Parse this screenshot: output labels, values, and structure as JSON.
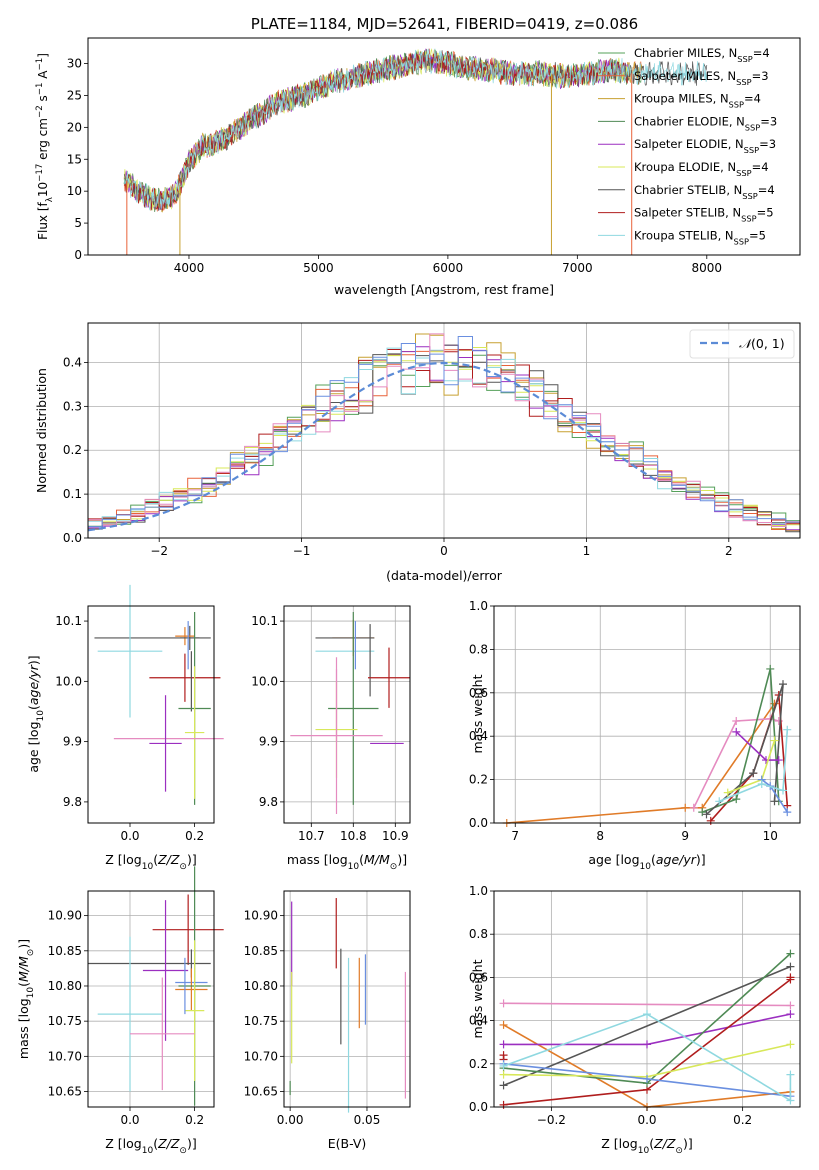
{
  "figure": {
    "title": "PLATE=1184, MJD=52641, FIBERID=0419, z=0.086"
  },
  "colors": {
    "Chabrier MILES": "#55a05a",
    "Salpeter MILES": "#e8623a",
    "Kroupa MILES": "#c7a030",
    "Chabrier ELODIE": "#4f8a55",
    "Salpeter ELODIE": "#9b2fc0",
    "Kroupa ELODIE": "#d8e85a",
    "Chabrier STELIB": "#555555",
    "Salpeter STELIB": "#b01d1d",
    "Kroupa STELIB": "#8fd8e0",
    "pink": "#e58bc0",
    "blue": "#6a8fe0",
    "orange": "#e07b28",
    "gauss": "#5b8bd6"
  },
  "chart_data": [
    {
      "id": "spectrum",
      "type": "line",
      "title": "PLATE=1184, MJD=52641, FIBERID=0419, z=0.086",
      "xlabel": "wavelength [Angstrom, rest frame]",
      "ylabel": "Flux [f_λ 10^-17 erg cm^-2 s^-1 A^-1]",
      "xlim": [
        3220,
        8720
      ],
      "ylim": [
        0,
        34
      ],
      "xticks": [
        4000,
        5000,
        6000,
        7000,
        8000
      ],
      "yticks": [
        0,
        5,
        10,
        15,
        20,
        25,
        30
      ],
      "legend_position": "top-right",
      "continuum": {
        "x": [
          3500,
          3600,
          3700,
          3800,
          3900,
          3950,
          4000,
          4100,
          4200,
          4300,
          4400,
          4500,
          4700,
          4900,
          5100,
          5300,
          5500,
          5700,
          5900,
          6100,
          6300,
          6500,
          6700,
          6900,
          7100,
          7300,
          7400
        ],
        "y": [
          12,
          10,
          9,
          8.5,
          9.5,
          12,
          14.5,
          17,
          17.5,
          18.5,
          20,
          21.5,
          24,
          25,
          27,
          28,
          29,
          30,
          30.5,
          29.5,
          29,
          28.5,
          28.5,
          28,
          28.5,
          29,
          28.5
        ]
      },
      "series": [
        {
          "name": "Chabrier MILES, N_SSP=4",
          "label_main": "Chabrier MILES, N",
          "label_sub": "SSP",
          "label_end": "=4",
          "color_key": "Chabrier MILES",
          "x_end": 7500
        },
        {
          "name": "Salpeter MILES, N_SSP=3",
          "label_main": "Salpeter MILES, N",
          "label_sub": "SSP",
          "label_end": "=3",
          "color_key": "Salpeter MILES",
          "x_end": 7500
        },
        {
          "name": "Kroupa MILES, N_SSP=4",
          "label_main": "Kroupa MILES, N",
          "label_sub": "SSP",
          "label_end": "=4",
          "color_key": "Kroupa MILES",
          "x_end": 7500
        },
        {
          "name": "Chabrier ELODIE, N_SSP=3",
          "label_main": "Chabrier ELODIE, N",
          "label_sub": "SSP",
          "label_end": "=3",
          "color_key": "Chabrier ELODIE",
          "x_end": 7400
        },
        {
          "name": "Salpeter ELODIE, N_SSP=3",
          "label_main": "Salpeter ELODIE, N",
          "label_sub": "SSP",
          "label_end": "=3",
          "color_key": "Salpeter ELODIE",
          "x_end": 7400
        },
        {
          "name": "Kroupa ELODIE, N_SSP=4",
          "label_main": "Kroupa ELODIE, N",
          "label_sub": "SSP",
          "label_end": "=4",
          "color_key": "Kroupa ELODIE",
          "x_end": 7400
        },
        {
          "name": "Chabrier STELIB, N_SSP=4",
          "label_main": "Chabrier STELIB, N",
          "label_sub": "SSP",
          "label_end": "=4",
          "color_key": "Chabrier STELIB",
          "x_end": 8000
        },
        {
          "name": "Salpeter STELIB, N_SSP=5",
          "label_main": "Salpeter STELIB, N",
          "label_sub": "SSP",
          "label_end": "=5",
          "color_key": "Salpeter STELIB",
          "x_end": 7400
        },
        {
          "name": "Kroupa STELIB, N_SSP=5",
          "label_main": "Kroupa STELIB, N",
          "label_sub": "SSP",
          "label_end": "=5",
          "color_key": "Kroupa STELIB",
          "x_end": 8000
        }
      ],
      "dips": [
        {
          "x": 3520,
          "color_key": "Salpeter MILES"
        },
        {
          "x": 3930,
          "color_key": "Kroupa MILES"
        },
        {
          "x": 6800,
          "color_key": "Kroupa MILES"
        },
        {
          "x": 7420,
          "color_key": "Salpeter MILES"
        }
      ]
    },
    {
      "id": "residuals",
      "type": "line",
      "xlabel": "(data-model)/error",
      "ylabel": "Normed distribution",
      "xlim": [
        -2.5,
        2.5
      ],
      "ylim": [
        0,
        0.49
      ],
      "xticks": [
        -2,
        -1,
        0,
        1,
        2
      ],
      "yticks": [
        0.0,
        0.1,
        0.2,
        0.3,
        0.4
      ],
      "grid": true,
      "legend": {
        "label": "N(0,1)",
        "position": "top-right",
        "color_key": "gauss"
      },
      "bins": {
        "start": -2.5,
        "width": 0.1,
        "count": 50
      },
      "hist_color_keys": [
        "Chabrier MILES",
        "Salpeter MILES",
        "Kroupa MILES",
        "Salpeter ELODIE",
        "Kroupa ELODIE",
        "Chabrier STELIB",
        "Salpeter STELIB",
        "Kroupa STELIB",
        "pink",
        "blue"
      ],
      "gaussian": {
        "mean": 0,
        "sigma": 1,
        "x_range": [
          -2.5,
          1.5
        ]
      }
    },
    {
      "id": "z_age",
      "type": "scatter",
      "xlabel": "Z [log10(Z/Z⊙)]",
      "ylabel": "age [log10(age/yr)]",
      "xlim": [
        -0.13,
        0.26
      ],
      "ylim": [
        9.765,
        10.125
      ],
      "xticks": [
        0.0,
        0.2
      ],
      "yticks": [
        9.8,
        9.9,
        10.0,
        10.1
      ],
      "grid": false,
      "points": [
        {
          "x": 0.185,
          "y": 10.072,
          "xerr": 0.03,
          "yerr": 0.02,
          "color_key": "Chabrier STELIB"
        },
        {
          "x": 0.17,
          "y": 10.075,
          "xerr": 0.03,
          "yerr": 0.015,
          "color_key": "orange"
        },
        {
          "x": 0.07,
          "y": 10.072,
          "xerr": 0.18,
          "yerr": 0.0,
          "color_key": "Chabrier STELIB"
        },
        {
          "x": 0.0,
          "y": 10.05,
          "xerr": 0.1,
          "yerr": 0.11,
          "color_key": "Kroupa STELIB"
        },
        {
          "x": 0.18,
          "y": 10.06,
          "xerr": 0.0,
          "yerr": 0.04,
          "color_key": "blue"
        },
        {
          "x": 0.17,
          "y": 10.006,
          "xerr": 0.11,
          "yerr": 0.04,
          "color_key": "Salpeter STELIB"
        },
        {
          "x": 0.19,
          "y": 10.0,
          "xerr": 0.0,
          "yerr": 0.05,
          "color_key": "Chabrier STELIB"
        },
        {
          "x": 0.2,
          "y": 9.955,
          "xerr": 0.05,
          "yerr": 0.16,
          "color_key": "Chabrier ELODIE"
        },
        {
          "x": 0.2,
          "y": 9.915,
          "xerr": 0.03,
          "yerr": 0.11,
          "color_key": "Kroupa ELODIE"
        },
        {
          "x": 0.12,
          "y": 9.905,
          "xerr": 0.17,
          "yerr": 0.0,
          "color_key": "pink"
        },
        {
          "x": 0.11,
          "y": 9.897,
          "xerr": 0.05,
          "yerr": 0.08,
          "color_key": "Salpeter ELODIE"
        }
      ]
    },
    {
      "id": "mass_age",
      "type": "scatter",
      "xlabel": "mass [log10(M/M⊙)]",
      "ylabel": "",
      "xlim": [
        10.635,
        10.935
      ],
      "ylim": [
        9.765,
        10.125
      ],
      "xticks": [
        10.7,
        10.8,
        10.9
      ],
      "yticks": [
        9.8,
        9.9,
        10.0,
        10.1
      ],
      "grid": true,
      "points": [
        {
          "x": 10.8,
          "y": 10.072,
          "xerr": 0.05,
          "yerr": 0.03,
          "color_key": "orange"
        },
        {
          "x": 10.78,
          "y": 10.072,
          "xerr": 0.07,
          "yerr": 0.0,
          "color_key": "Chabrier STELIB"
        },
        {
          "x": 10.78,
          "y": 10.05,
          "xerr": 0.07,
          "yerr": 0.0,
          "color_key": "Kroupa STELIB"
        },
        {
          "x": 10.805,
          "y": 10.06,
          "xerr": 0.0,
          "yerr": 0.04,
          "color_key": "blue"
        },
        {
          "x": 10.84,
          "y": 10.035,
          "xerr": 0.0,
          "yerr": 0.06,
          "color_key": "Chabrier STELIB"
        },
        {
          "x": 10.885,
          "y": 10.006,
          "xerr": 0.05,
          "yerr": 0.05,
          "color_key": "Salpeter STELIB"
        },
        {
          "x": 10.8,
          "y": 9.955,
          "xerr": 0.06,
          "yerr": 0.16,
          "color_key": "Chabrier ELODIE"
        },
        {
          "x": 10.76,
          "y": 9.96,
          "xerr": 0.0,
          "yerr": 0.06,
          "color_key": "pink"
        },
        {
          "x": 10.76,
          "y": 9.92,
          "xerr": 0.05,
          "yerr": 0.08,
          "color_key": "Kroupa ELODIE"
        },
        {
          "x": 10.76,
          "y": 9.91,
          "xerr": 0.11,
          "yerr": 0.13,
          "color_key": "pink"
        },
        {
          "x": 10.88,
          "y": 9.897,
          "xerr": 0.04,
          "yerr": 0.0,
          "color_key": "Salpeter ELODIE"
        }
      ]
    },
    {
      "id": "age_weight",
      "type": "line",
      "xlabel": "age [log10(age/yr)]",
      "ylabel": "mass weight",
      "xlim": [
        6.75,
        10.35
      ],
      "ylim": [
        0,
        1.0
      ],
      "xticks": [
        7,
        8,
        9,
        10
      ],
      "yticks": [
        0.0,
        0.2,
        0.4,
        0.6,
        0.8,
        1.0
      ],
      "grid": true,
      "series": [
        {
          "color_key": "orange",
          "x": [
            6.9,
            9.0,
            9.2,
            10.05
          ],
          "y": [
            0.0,
            0.07,
            0.07,
            0.55
          ]
        },
        {
          "color_key": "pink",
          "x": [
            9.1,
            9.6,
            10.0,
            10.1
          ],
          "y": [
            0.07,
            0.47,
            0.48,
            0.47
          ]
        },
        {
          "color_key": "Salpeter STELIB",
          "x": [
            9.3,
            9.8,
            10.1,
            10.2
          ],
          "y": [
            0.01,
            0.23,
            0.59,
            0.08
          ]
        },
        {
          "color_key": "Chabrier ELODIE",
          "x": [
            9.2,
            9.6,
            10.0,
            10.1
          ],
          "y": [
            0.05,
            0.11,
            0.71,
            0.1
          ]
        },
        {
          "color_key": "Chabrier STELIB",
          "x": [
            9.25,
            9.8,
            10.15,
            10.05
          ],
          "y": [
            0.04,
            0.23,
            0.64,
            0.1
          ]
        },
        {
          "color_key": "Salpeter ELODIE",
          "x": [
            9.6,
            9.95,
            10.1
          ],
          "y": [
            0.42,
            0.29,
            0.29
          ]
        },
        {
          "color_key": "Kroupa ELODIE",
          "x": [
            9.5,
            9.9,
            10.05
          ],
          "y": [
            0.14,
            0.2,
            0.38
          ]
        },
        {
          "color_key": "blue",
          "x": [
            9.9,
            10.0,
            10.2
          ],
          "y": [
            0.2,
            0.17,
            0.05
          ]
        },
        {
          "color_key": "Kroupa STELIB",
          "x": [
            9.4,
            9.9,
            10.15,
            10.2
          ],
          "y": [
            0.1,
            0.18,
            0.15,
            0.43
          ]
        }
      ]
    },
    {
      "id": "z_mass",
      "type": "scatter",
      "xlabel": "Z [log10(Z/Z⊙)]",
      "ylabel": "mass [log10(M/M⊙)]",
      "xlim": [
        -0.13,
        0.26
      ],
      "ylim": [
        10.628,
        10.935
      ],
      "xticks": [
        0.0,
        0.2
      ],
      "yticks": [
        10.65,
        10.7,
        10.75,
        10.8,
        10.85,
        10.9
      ],
      "grid": true,
      "points": [
        {
          "x": 0.18,
          "y": 10.88,
          "xerr": 0.11,
          "yerr": 0.05,
          "color_key": "Salpeter STELIB"
        },
        {
          "x": 0.19,
          "y": 10.832,
          "xerr": 0.0,
          "yerr": 0.02,
          "color_key": "Chabrier STELIB"
        },
        {
          "x": 0.06,
          "y": 10.832,
          "xerr": 0.19,
          "yerr": 0.0,
          "color_key": "Chabrier STELIB"
        },
        {
          "x": 0.11,
          "y": 10.822,
          "xerr": 0.07,
          "yerr": 0.1,
          "color_key": "Salpeter ELODIE"
        },
        {
          "x": 0.19,
          "y": 10.805,
          "xerr": 0.05,
          "yerr": 0.0,
          "color_key": "blue"
        },
        {
          "x": 0.19,
          "y": 10.795,
          "xerr": 0.05,
          "yerr": 0.03,
          "color_key": "orange"
        },
        {
          "x": 0.2,
          "y": 10.8,
          "xerr": 0.05,
          "yerr": 0.17,
          "color_key": "Chabrier ELODIE"
        },
        {
          "x": 0.2,
          "y": 10.765,
          "xerr": 0.03,
          "yerr": 0.1,
          "color_key": "Kroupa ELODIE"
        },
        {
          "x": 0.0,
          "y": 10.76,
          "xerr": 0.1,
          "yerr": 0.11,
          "color_key": "Kroupa STELIB"
        },
        {
          "x": 0.1,
          "y": 10.732,
          "xerr": 0.1,
          "yerr": 0.08,
          "color_key": "pink"
        },
        {
          "x": 0.17,
          "y": 10.8,
          "xerr": 0.0,
          "yerr": 0.04,
          "color_key": "blue"
        }
      ]
    },
    {
      "id": "ebv_mass",
      "type": "scatter",
      "xlabel": "E(B-V)",
      "ylabel": "",
      "xlim": [
        -0.004,
        0.078
      ],
      "ylim": [
        10.628,
        10.935
      ],
      "xticks": [
        0.0,
        0.05
      ],
      "yticks": [
        10.65,
        10.7,
        10.75,
        10.8,
        10.85,
        10.9
      ],
      "grid": true,
      "points": [
        {
          "x": 0.001,
          "y": 10.86,
          "xerr": 0,
          "yerr": 0.06,
          "color_key": "Salpeter ELODIE"
        },
        {
          "x": 0.001,
          "y": 10.755,
          "xerr": 0,
          "yerr": 0.065,
          "color_key": "Kroupa ELODIE"
        },
        {
          "x": 0.0,
          "y": 10.655,
          "xerr": 0,
          "yerr": 0.01,
          "color_key": "Chabrier ELODIE"
        },
        {
          "x": 0.03,
          "y": 10.875,
          "xerr": 0,
          "yerr": 0.05,
          "color_key": "Salpeter STELIB"
        },
        {
          "x": 0.033,
          "y": 10.785,
          "xerr": 0,
          "yerr": 0.068,
          "color_key": "Chabrier STELIB"
        },
        {
          "x": 0.038,
          "y": 10.73,
          "xerr": 0,
          "yerr": 0.11,
          "color_key": "Kroupa STELIB"
        },
        {
          "x": 0.045,
          "y": 10.79,
          "xerr": 0,
          "yerr": 0.05,
          "color_key": "orange"
        },
        {
          "x": 0.049,
          "y": 10.795,
          "xerr": 0,
          "yerr": 0.05,
          "color_key": "blue"
        },
        {
          "x": 0.075,
          "y": 10.73,
          "xerr": 0,
          "yerr": 0.09,
          "color_key": "pink"
        }
      ]
    },
    {
      "id": "z_weight",
      "type": "line",
      "xlabel": "Z [log10(Z/Z⊙)]",
      "ylabel": "mass weight",
      "xlim": [
        -0.32,
        0.32
      ],
      "ylim": [
        0,
        1.0
      ],
      "xticks": [
        -0.2,
        0.0,
        0.2
      ],
      "yticks": [
        0.0,
        0.2,
        0.4,
        0.6,
        0.8,
        1.0
      ],
      "grid": true,
      "series": [
        {
          "color_key": "pink",
          "x": [
            -0.3,
            0.3
          ],
          "y": [
            0.48,
            0.47
          ]
        },
        {
          "color_key": "orange",
          "x": [
            -0.3,
            0.0,
            0.3
          ],
          "y": [
            0.38,
            0.0,
            0.07
          ]
        },
        {
          "color_key": "Salpeter ELODIE",
          "x": [
            -0.3,
            0.0,
            0.3
          ],
          "y": [
            0.29,
            0.29,
            0.43
          ]
        },
        {
          "color_key": "Salpeter STELIB",
          "x": [
            -0.3,
            0.0,
            0.3,
            0.3
          ],
          "y": [
            0.01,
            0.08,
            0.59,
            0.6
          ]
        },
        {
          "color_key": "Salpeter STELIB",
          "x": [
            -0.3,
            -0.3
          ],
          "y": [
            0.22,
            0.24
          ]
        },
        {
          "color_key": "Chabrier STELIB",
          "x": [
            -0.3,
            0.3
          ],
          "y": [
            0.1,
            0.65
          ]
        },
        {
          "color_key": "Chabrier ELODIE",
          "x": [
            -0.3,
            0.0,
            0.3
          ],
          "y": [
            0.18,
            0.11,
            0.71
          ]
        },
        {
          "color_key": "Kroupa ELODIE",
          "x": [
            -0.3,
            0.0,
            0.3
          ],
          "y": [
            0.15,
            0.14,
            0.29
          ]
        },
        {
          "color_key": "blue",
          "x": [
            -0.3,
            0.0,
            0.3
          ],
          "y": [
            0.2,
            0.13,
            0.05
          ]
        },
        {
          "color_key": "Kroupa STELIB",
          "x": [
            -0.3,
            0.0,
            0.3,
            0.3
          ],
          "y": [
            0.19,
            0.43,
            0.03,
            0.15
          ]
        }
      ]
    }
  ]
}
